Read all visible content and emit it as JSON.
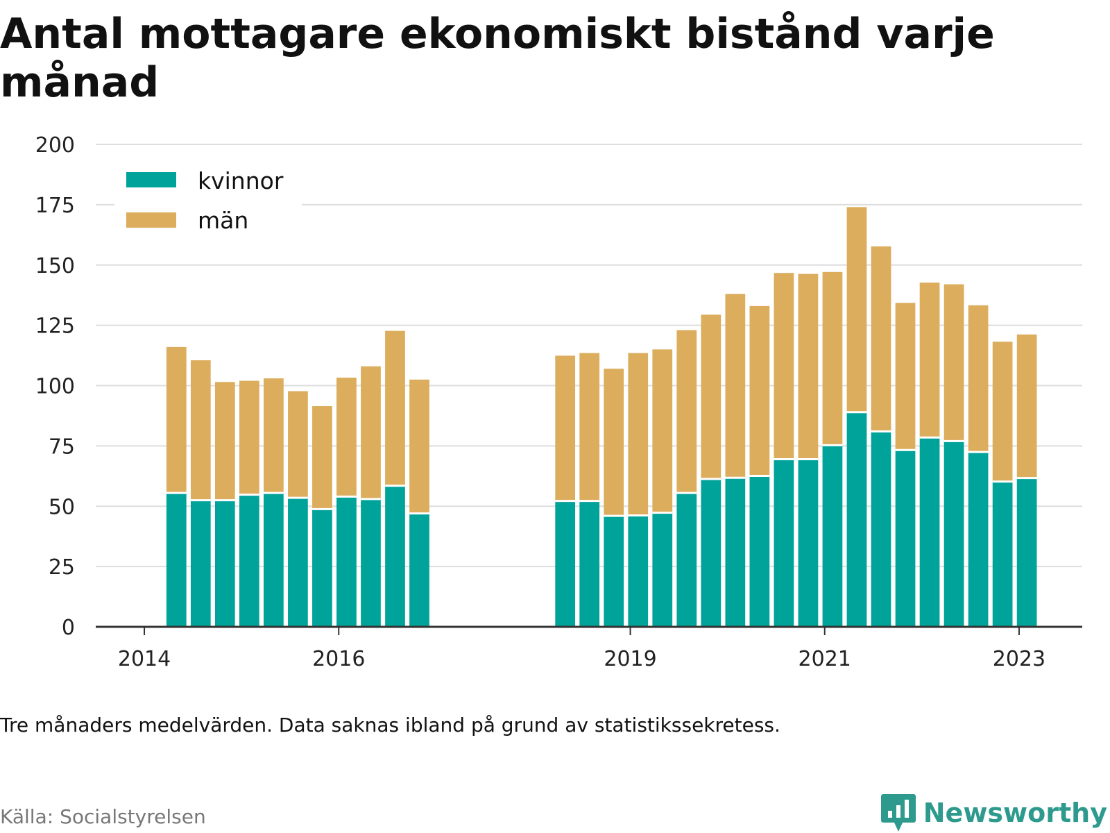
{
  "title": "Antal mottagare ekonomiskt bistånd varje månad",
  "note": "Tre månaders medelvärden. Data saknas ibland på grund av statistikssekretess.",
  "source": "Källa: Socialstyrelsen",
  "brand": {
    "name": "Newsworthy",
    "icon": "newsworthy-logo-icon"
  },
  "colors": {
    "kvinnor": "#00a39a",
    "man": "#dbad5c",
    "grid": "#dddddd",
    "axis": "#333333"
  },
  "chart_data": {
    "type": "bar",
    "stacked": true,
    "ylim": [
      0,
      200
    ],
    "yticks": [
      "0",
      "25",
      "50",
      "75",
      "100",
      "125",
      "150",
      "175",
      "200"
    ],
    "xticks": [
      {
        "label": "2014",
        "t": 2014.0
      },
      {
        "label": "2016",
        "t": 2016.0
      },
      {
        "label": "2019",
        "t": 2019.0
      },
      {
        "label": "2021",
        "t": 2021.0
      },
      {
        "label": "2023",
        "t": 2023.0
      }
    ],
    "xlim": [
      2013.5,
      2023.65
    ],
    "grid": true,
    "legend_position": "top-left",
    "x": [
      2014.33,
      2014.58,
      2014.83,
      2015.08,
      2015.33,
      2015.58,
      2015.83,
      2016.08,
      2016.33,
      2016.58,
      2016.83,
      2018.33,
      2018.58,
      2018.83,
      2019.08,
      2019.33,
      2019.58,
      2019.83,
      2020.08,
      2020.33,
      2020.58,
      2020.83,
      2021.08,
      2021.33,
      2021.58,
      2021.83,
      2022.08,
      2022.33,
      2022.58,
      2022.83,
      2023.08
    ],
    "series": [
      {
        "name": "kvinnor",
        "values": [
          55.5,
          52.5,
          52.5,
          54.8,
          55.5,
          53.5,
          48.8,
          54,
          53,
          58.5,
          47,
          52.2,
          52.2,
          46,
          46.2,
          47.3,
          55.5,
          61.3,
          61.8,
          62.6,
          69.5,
          69.5,
          75.3,
          89,
          81,
          73.3,
          78.5,
          77,
          72.5,
          60.2,
          61.7
        ]
      },
      {
        "name": "män",
        "values": [
          60.5,
          58,
          49,
          47.2,
          47.5,
          44.2,
          42.7,
          49.3,
          55,
          64.2,
          55.5,
          60.2,
          61.3,
          61,
          67.3,
          67.7,
          67.5,
          68.1,
          76.2,
          70.4,
          77.2,
          76.8,
          71.8,
          85,
          76.7,
          61,
          64.2,
          65,
          60.8,
          58,
          59.5
        ]
      }
    ]
  }
}
